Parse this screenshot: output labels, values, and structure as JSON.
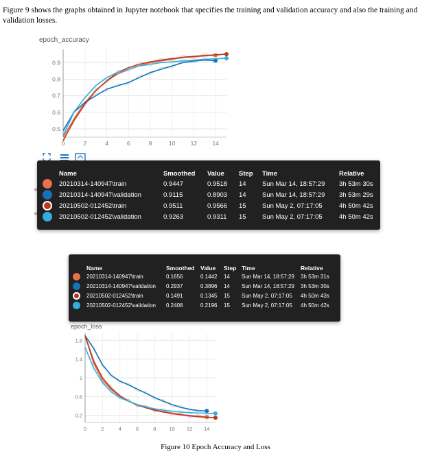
{
  "intro_text": "Figure 9 shows the graphs obtained in Jupyter notebook that specifies the training and validation accuracy and also the training and validation losses.",
  "caption": "Figure 10 Epoch Accuracy and Loss",
  "colors": {
    "train_1": "#e8704a",
    "validation_1": "#1473b5",
    "train_2": "#b83a1e",
    "validation_2": "#33aee0",
    "tooltip_bg": "#212121"
  },
  "tooltip_headers": [
    "Name",
    "Smoothed",
    "Value",
    "Step",
    "Time",
    "Relative"
  ],
  "accuracy_tooltip": [
    {
      "name": "20210314-140947\\train",
      "smoothed": "0.9447",
      "value": "0.9518",
      "step": "14",
      "time": "Sun Mar 14, 18:57:29",
      "relative": "3h 53m 30s"
    },
    {
      "name": "20210314-140947\\validation",
      "smoothed": "0.9115",
      "value": "0.8903",
      "step": "14",
      "time": "Sun Mar 14, 18:57:29",
      "relative": "3h 53m 29s"
    },
    {
      "name": "20210502-012452\\train",
      "smoothed": "0.9511",
      "value": "0.9566",
      "step": "15",
      "time": "Sun May 2, 07:17:05",
      "relative": "4h 50m 42s"
    },
    {
      "name": "20210502-012452\\validation",
      "smoothed": "0.9263",
      "value": "0.9311",
      "step": "15",
      "time": "Sun May 2, 07:17:05",
      "relative": "4h 50m 42s"
    }
  ],
  "loss_tooltip": [
    {
      "name": "20210314-140947\\train",
      "smoothed": "0.1656",
      "value": "0.1442",
      "step": "14",
      "time": "Sun Mar 14, 18:57:29",
      "relative": "3h 53m 31s"
    },
    {
      "name": "20210314-140947\\validation",
      "smoothed": "0.2937",
      "value": "0.3896",
      "step": "14",
      "time": "Sun Mar 14, 18:57:29",
      "relative": "3h 53m 30s"
    },
    {
      "name": "20210502-012452\\train",
      "smoothed": "0.1491",
      "value": "0.1345",
      "step": "15",
      "time": "Sun May 2, 07:17:05",
      "relative": "4h 50m 43s"
    },
    {
      "name": "20210502-012452\\validation",
      "smoothed": "0.2408",
      "value": "0.2196",
      "step": "15",
      "time": "Sun May 2, 07:17:05",
      "relative": "4h 50m 42s"
    }
  ],
  "chart_data": [
    {
      "type": "line",
      "title": "epoch_accuracy",
      "xlim": [
        0,
        15
      ],
      "ylim": [
        0.45,
        0.98
      ],
      "xticks": [
        0,
        2,
        4,
        6,
        8,
        10,
        12,
        14
      ],
      "yticks": [
        0.5,
        0.6,
        0.7,
        0.8,
        0.9
      ],
      "grid": true,
      "series": [
        {
          "name": "20210314-140947\\train",
          "color": "#e8704a",
          "x": [
            0,
            1,
            2,
            3,
            4,
            5,
            6,
            7,
            8,
            9,
            10,
            11,
            12,
            13,
            14
          ],
          "y": [
            0.45,
            0.56,
            0.66,
            0.73,
            0.79,
            0.83,
            0.86,
            0.88,
            0.9,
            0.91,
            0.92,
            0.93,
            0.935,
            0.94,
            0.945
          ]
        },
        {
          "name": "20210314-140947\\validation",
          "color": "#1473b5",
          "x": [
            0,
            1,
            2,
            3,
            4,
            5,
            6,
            7,
            8,
            9,
            10,
            11,
            12,
            13,
            14
          ],
          "y": [
            0.49,
            0.6,
            0.66,
            0.7,
            0.74,
            0.76,
            0.78,
            0.81,
            0.84,
            0.86,
            0.88,
            0.9,
            0.91,
            0.915,
            0.912
          ]
        },
        {
          "name": "20210502-012452\\train",
          "color": "#b83a1e",
          "x": [
            0,
            1,
            2,
            3,
            4,
            5,
            6,
            7,
            8,
            9,
            10,
            11,
            12,
            13,
            14,
            15
          ],
          "y": [
            0.43,
            0.55,
            0.65,
            0.73,
            0.79,
            0.84,
            0.87,
            0.89,
            0.905,
            0.915,
            0.925,
            0.932,
            0.938,
            0.943,
            0.947,
            0.951
          ]
        },
        {
          "name": "20210502-012452\\validation",
          "color": "#33aee0",
          "x": [
            0,
            1,
            2,
            3,
            4,
            5,
            6,
            7,
            8,
            9,
            10,
            11,
            12,
            13,
            14,
            15
          ],
          "y": [
            0.46,
            0.6,
            0.69,
            0.76,
            0.81,
            0.84,
            0.86,
            0.88,
            0.89,
            0.9,
            0.905,
            0.91,
            0.915,
            0.92,
            0.924,
            0.926
          ]
        }
      ]
    },
    {
      "type": "line",
      "title": "epoch_loss",
      "xlim": [
        0,
        15
      ],
      "ylim": [
        0.05,
        1.95
      ],
      "xticks": [
        0,
        2,
        4,
        6,
        8,
        10,
        12,
        14
      ],
      "yticks": [
        0.2,
        0.6,
        1,
        1.4,
        1.8
      ],
      "grid": true,
      "series": [
        {
          "name": "20210314-140947\\train",
          "color": "#e8704a",
          "x": [
            0,
            1,
            2,
            3,
            4,
            5,
            6,
            7,
            8,
            9,
            10,
            11,
            12,
            13,
            14
          ],
          "y": [
            1.9,
            1.3,
            0.95,
            0.75,
            0.6,
            0.5,
            0.43,
            0.37,
            0.32,
            0.28,
            0.25,
            0.22,
            0.2,
            0.18,
            0.166
          ]
        },
        {
          "name": "20210314-140947\\validation",
          "color": "#1473b5",
          "x": [
            0,
            1,
            2,
            3,
            4,
            5,
            6,
            7,
            8,
            9,
            10,
            11,
            12,
            13,
            14
          ],
          "y": [
            1.9,
            1.62,
            1.28,
            1.05,
            0.93,
            0.85,
            0.76,
            0.67,
            0.58,
            0.5,
            0.43,
            0.37,
            0.33,
            0.3,
            0.294
          ]
        },
        {
          "name": "20210502-012452\\train",
          "color": "#b83a1e",
          "x": [
            0,
            1,
            2,
            3,
            4,
            5,
            6,
            7,
            8,
            9,
            10,
            11,
            12,
            13,
            14,
            15
          ],
          "y": [
            1.9,
            1.35,
            1.0,
            0.78,
            0.62,
            0.5,
            0.42,
            0.36,
            0.31,
            0.27,
            0.24,
            0.21,
            0.19,
            0.17,
            0.16,
            0.149
          ]
        },
        {
          "name": "20210502-012452\\validation",
          "color": "#33aee0",
          "x": [
            0,
            1,
            2,
            3,
            4,
            5,
            6,
            7,
            8,
            9,
            10,
            11,
            12,
            13,
            14,
            15
          ],
          "y": [
            1.65,
            1.2,
            0.9,
            0.7,
            0.58,
            0.5,
            0.43,
            0.38,
            0.34,
            0.31,
            0.29,
            0.27,
            0.26,
            0.25,
            0.245,
            0.241
          ]
        }
      ]
    }
  ]
}
